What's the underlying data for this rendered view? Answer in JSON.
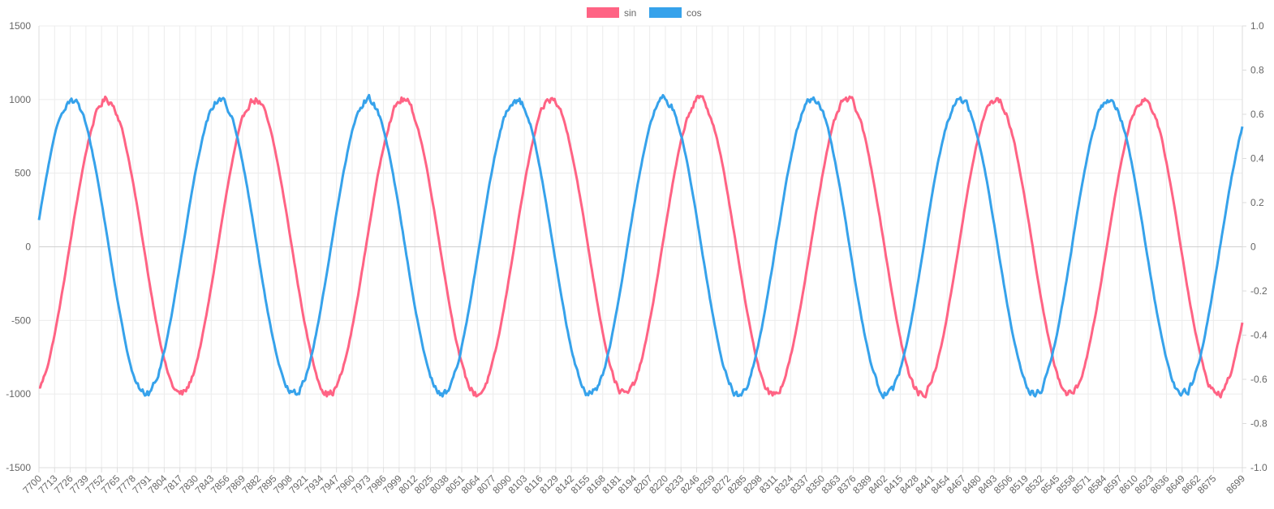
{
  "chart_data": {
    "type": "line",
    "title": "",
    "x": {
      "start": 7700,
      "end": 8699,
      "step": 1
    },
    "x_tick_labels": [
      "7700",
      "7713",
      "7726",
      "7739",
      "7752",
      "7765",
      "7778",
      "7791",
      "7804",
      "7817",
      "7830",
      "7843",
      "7856",
      "7869",
      "7882",
      "7895",
      "7908",
      "7921",
      "7934",
      "7947",
      "7960",
      "7973",
      "7986",
      "7999",
      "8012",
      "8025",
      "8038",
      "8051",
      "8064",
      "8077",
      "8090",
      "8103",
      "8116",
      "8129",
      "8142",
      "8155",
      "8168",
      "8181",
      "8194",
      "8207",
      "8220",
      "8233",
      "8246",
      "8259",
      "8272",
      "8285",
      "8298",
      "8311",
      "8324",
      "8337",
      "8350",
      "8363",
      "8376",
      "8389",
      "8402",
      "8415",
      "8428",
      "8441",
      "8454",
      "8467",
      "8480",
      "8493",
      "8506",
      "8519",
      "8532",
      "8545",
      "8558",
      "8571",
      "8584",
      "8597",
      "8610",
      "8623",
      "8636",
      "8649",
      "8662",
      "8675",
      "8699"
    ],
    "y_left": {
      "min": -1500,
      "max": 1500,
      "ticks": [
        "1500",
        "1000",
        "500",
        "0",
        "-500",
        "-1000",
        "-1500"
      ]
    },
    "y_right": {
      "min": -1.0,
      "max": 1.0,
      "ticks": [
        "1.0",
        "0.8",
        "0.6",
        "0.4",
        "0.2",
        "0",
        "-0.2",
        "-0.4",
        "-0.6",
        "-0.8",
        "-1.0"
      ]
    },
    "grid": true,
    "legend": {
      "position": "top-center"
    },
    "series": [
      {
        "name": "sin",
        "color": "#ff6384",
        "amplitude": 1000,
        "period": 123,
        "phase_at_start": -1.3,
        "noise": 25
      },
      {
        "name": "cos",
        "color": "#36a2eb",
        "amplitude": 1000,
        "period": 123,
        "phase_at_start": 0.18,
        "noise": 25
      }
    ]
  }
}
